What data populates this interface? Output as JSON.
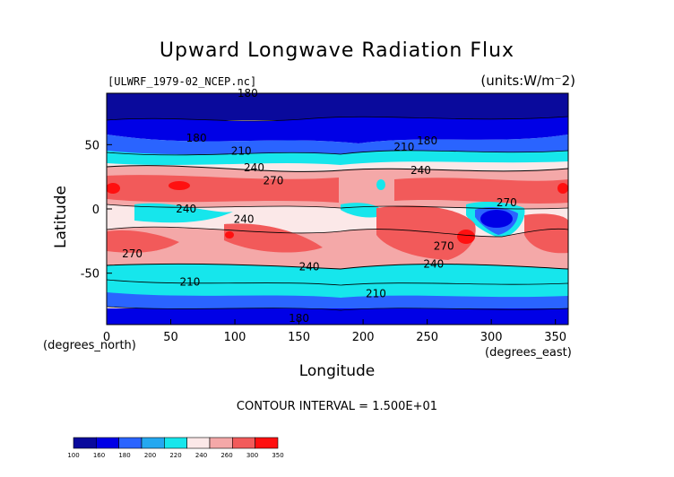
{
  "title": "Upward Longwave Radiation Flux",
  "file_label": "[ULWRF_1979-02_NCEP.nc]",
  "units_label": "(units:W/m⁻2)",
  "xlabel": "Longitude",
  "ylabel": "Latitude",
  "x_units": "(degrees_east)",
  "y_units": "(degrees_north)",
  "contour_interval": "CONTOUR INTERVAL = 1.500E+01",
  "map": {
    "x_range": [
      0,
      360
    ],
    "y_range": [
      -90,
      90
    ],
    "x_ticks": [
      "0",
      "50",
      "100",
      "150",
      "200",
      "250",
      "300",
      "350"
    ],
    "y_ticks": [
      "50",
      "0",
      "-50"
    ],
    "contour_labels": [
      {
        "text": "180",
        "lon": 150,
        "lat": -85
      },
      {
        "text": "180",
        "lon": 250,
        "lat": 53
      },
      {
        "text": "180",
        "lon": 70,
        "lat": 55
      },
      {
        "text": "210",
        "lon": 105,
        "lat": 45
      },
      {
        "text": "210",
        "lon": 232,
        "lat": 48
      },
      {
        "text": "240",
        "lon": 115,
        "lat": 32
      },
      {
        "text": "240",
        "lon": 245,
        "lat": 30
      },
      {
        "text": "270",
        "lon": 130,
        "lat": 22
      },
      {
        "text": "270",
        "lon": 312,
        "lat": 5
      },
      {
        "text": "240",
        "lon": 62,
        "lat": 0
      },
      {
        "text": "240",
        "lon": 107,
        "lat": -8
      },
      {
        "text": "270",
        "lon": 20,
        "lat": -35
      },
      {
        "text": "270",
        "lon": 263,
        "lat": -29
      },
      {
        "text": "240",
        "lon": 158,
        "lat": -45
      },
      {
        "text": "240",
        "lon": 255,
        "lat": -43
      },
      {
        "text": "210",
        "lon": 65,
        "lat": -57
      },
      {
        "text": "210",
        "lon": 210,
        "lat": -66
      },
      {
        "text": "180",
        "lon": 110,
        "lat": 90
      }
    ]
  },
  "colorbar": {
    "ticks": [
      "100",
      "160",
      "180",
      "200",
      "220",
      "240",
      "260",
      "300",
      "350"
    ],
    "colors": [
      "#0a0a9c",
      "#0000e6",
      "#2a64ff",
      "#24a8f0",
      "#16e6ec",
      "#fbe8e8",
      "#f4a8a8",
      "#f25a5a",
      "#ff1010"
    ]
  }
}
